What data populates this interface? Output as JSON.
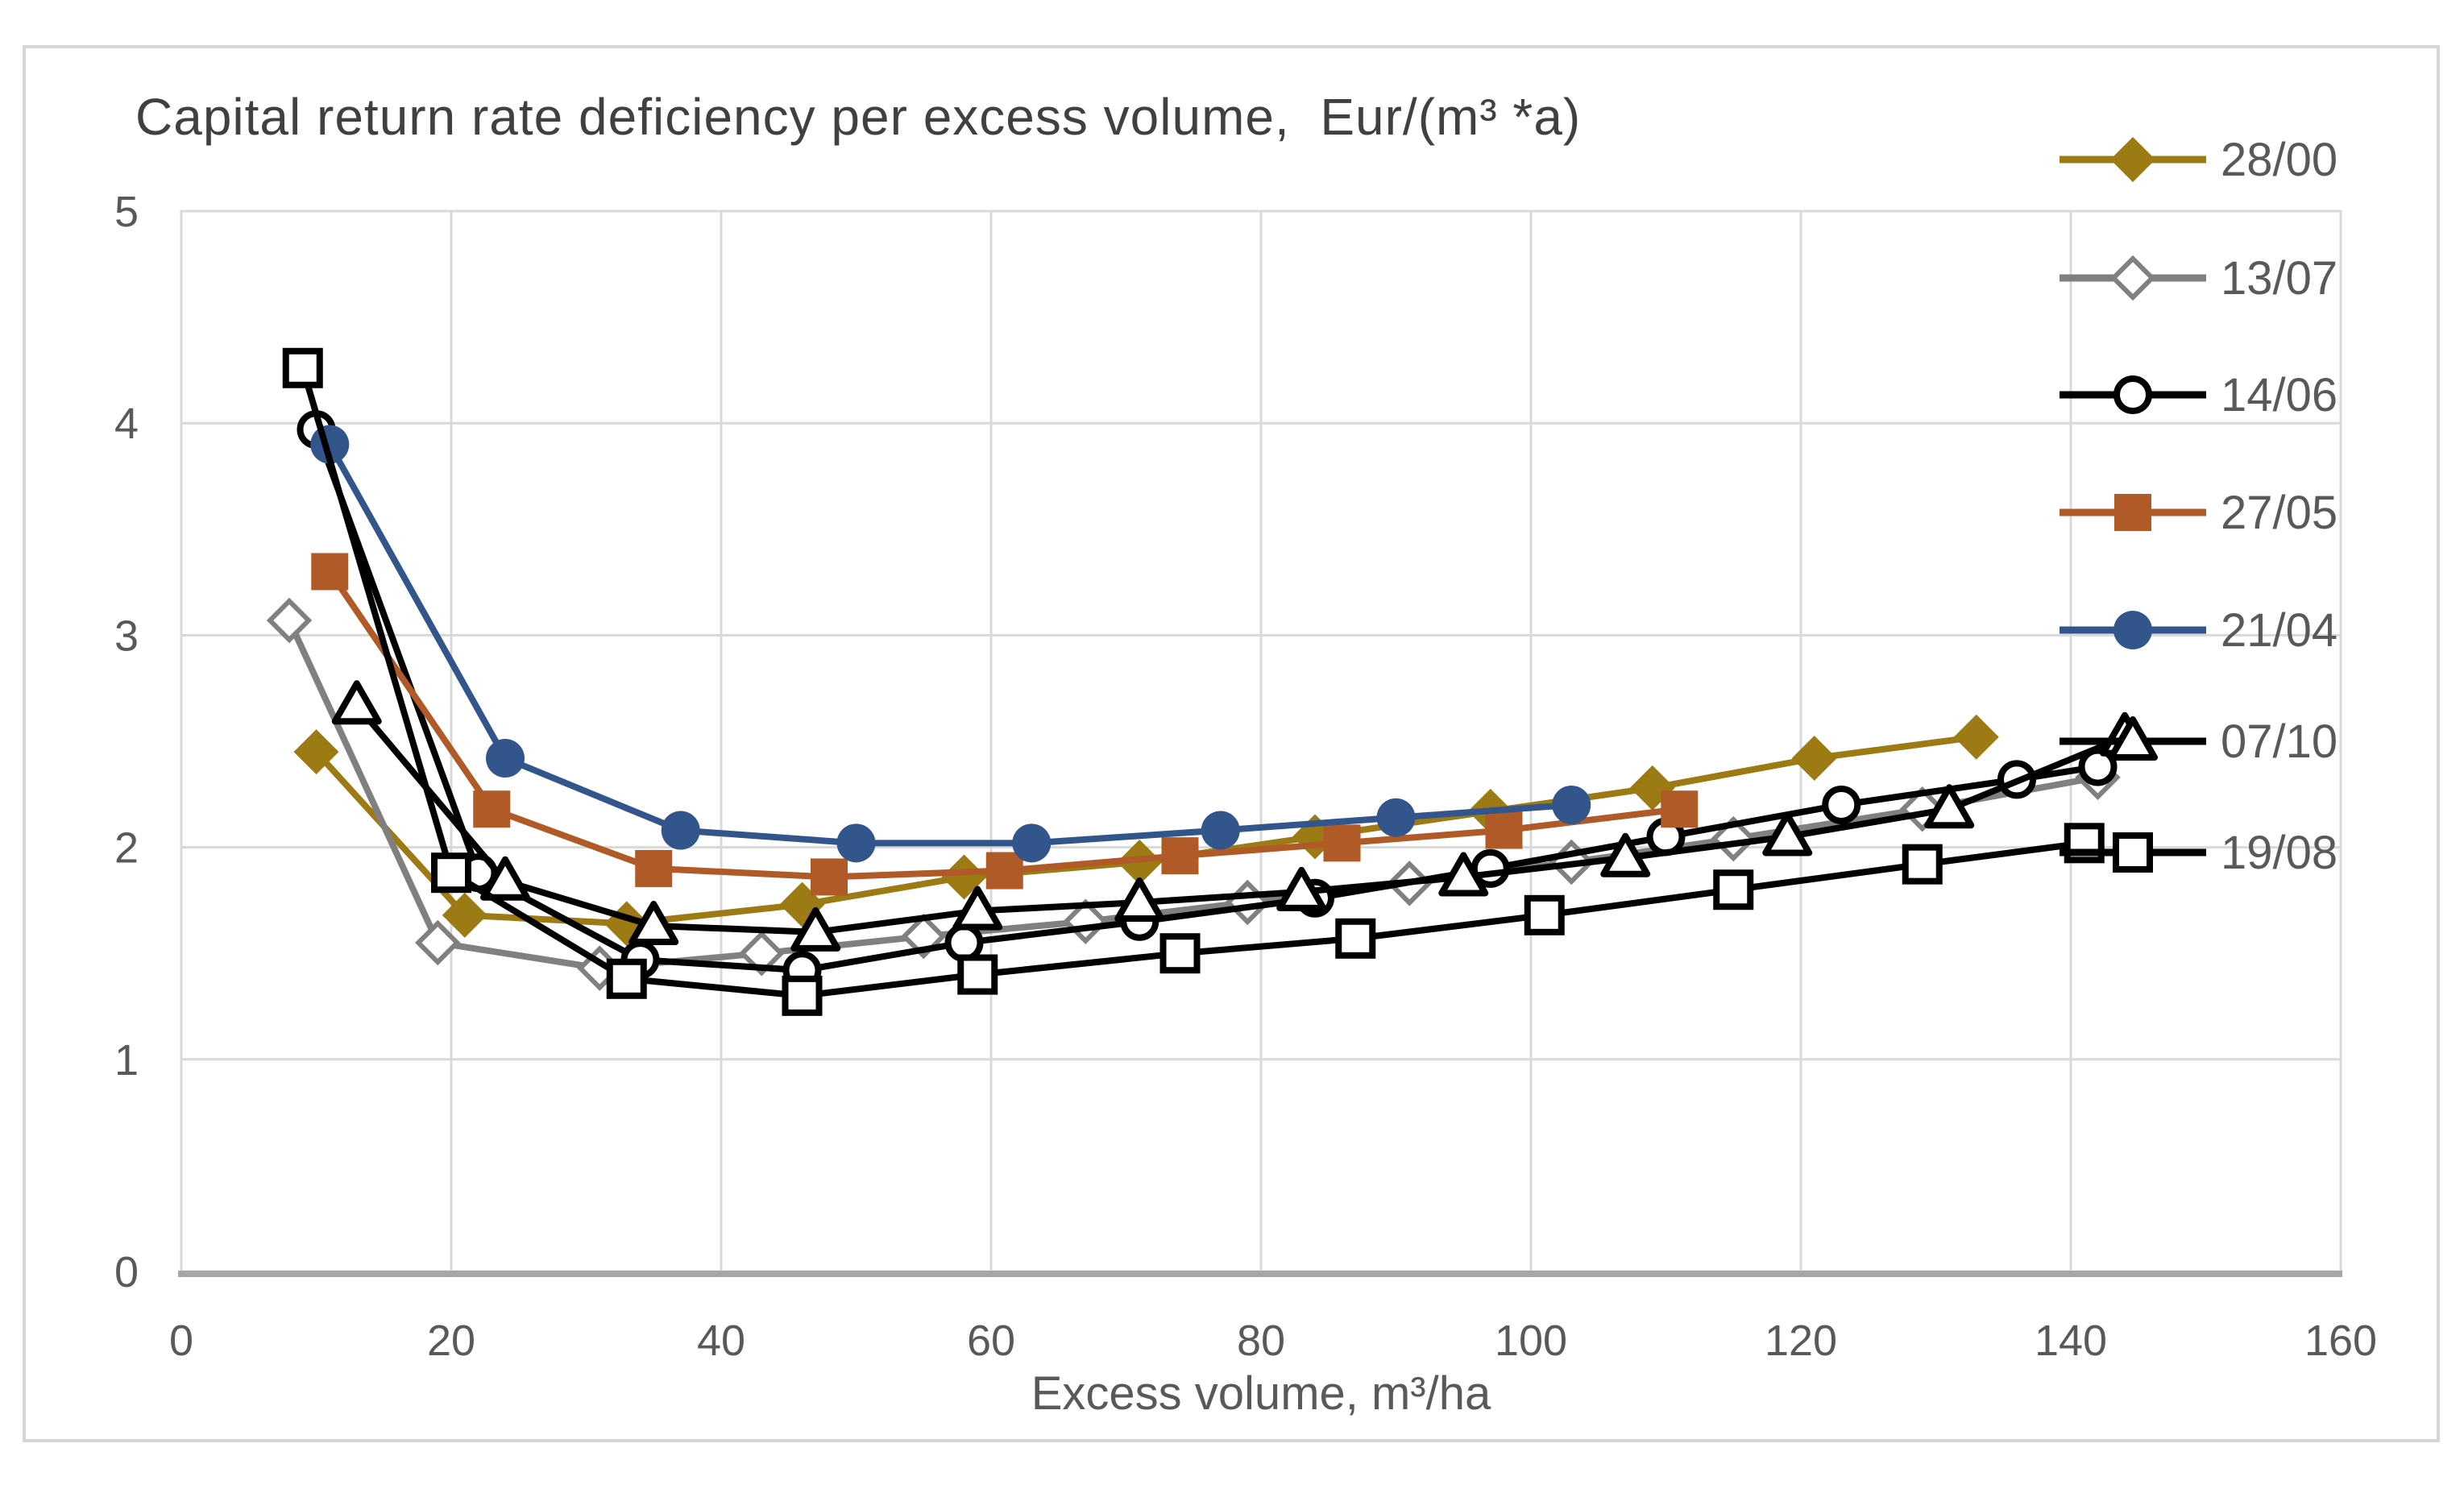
{
  "chart_data": {
    "type": "line",
    "title": "Capital return rate deficiency per excess volume,  Eur/(m³ *a)",
    "xlabel": "Excess volume, m³/ha",
    "ylabel": "",
    "xlim": [
      0,
      160
    ],
    "ylim": [
      0,
      5
    ],
    "xticks": [
      0,
      20,
      40,
      60,
      80,
      100,
      120,
      140,
      160
    ],
    "yticks": [
      0,
      1,
      2,
      3,
      4,
      5
    ],
    "grid": true,
    "legend_position": "right",
    "series": [
      {
        "name": "28/00",
        "color": "#9C7A14",
        "marker": "diamond-filled",
        "points": [
          [
            10,
            2.45
          ],
          [
            21,
            1.68
          ],
          [
            33,
            1.64
          ],
          [
            46,
            1.73
          ],
          [
            58,
            1.86
          ],
          [
            71,
            1.93
          ],
          [
            84,
            2.05
          ],
          [
            97,
            2.17
          ],
          [
            109,
            2.28
          ],
          [
            121,
            2.42
          ],
          [
            133,
            2.52
          ]
        ]
      },
      {
        "name": "13/07",
        "color": "#808080",
        "marker": "diamond-open",
        "points": [
          [
            8,
            3.07
          ],
          [
            19,
            1.55
          ],
          [
            31,
            1.43
          ],
          [
            43,
            1.5
          ],
          [
            55,
            1.58
          ],
          [
            67,
            1.65
          ],
          [
            79,
            1.74
          ],
          [
            91,
            1.83
          ],
          [
            103,
            1.93
          ],
          [
            115,
            2.04
          ],
          [
            129,
            2.18
          ],
          [
            142,
            2.33
          ]
        ]
      },
      {
        "name": "14/06",
        "color": "#000000",
        "marker": "circle-open",
        "points": [
          [
            10,
            3.97
          ],
          [
            22,
            1.88
          ],
          [
            34,
            1.47
          ],
          [
            46,
            1.42
          ],
          [
            58,
            1.55
          ],
          [
            71,
            1.65
          ],
          [
            84,
            1.76
          ],
          [
            97,
            1.9
          ],
          [
            110,
            2.05
          ],
          [
            123,
            2.2
          ],
          [
            136,
            2.32
          ],
          [
            142,
            2.38
          ]
        ]
      },
      {
        "name": "27/05",
        "color": "#B05A28",
        "marker": "square-filled",
        "points": [
          [
            11,
            3.3
          ],
          [
            23,
            2.18
          ],
          [
            35,
            1.9
          ],
          [
            48,
            1.86
          ],
          [
            61,
            1.89
          ],
          [
            74,
            1.96
          ],
          [
            86,
            2.02
          ],
          [
            98,
            2.08
          ],
          [
            111,
            2.18
          ]
        ]
      },
      {
        "name": "21/04",
        "color": "#32568C",
        "marker": "circle-filled",
        "points": [
          [
            11,
            3.9
          ],
          [
            24,
            2.42
          ],
          [
            37,
            2.08
          ],
          [
            50,
            2.02
          ],
          [
            63,
            2.02
          ],
          [
            77,
            2.08
          ],
          [
            90,
            2.14
          ],
          [
            103,
            2.2
          ]
        ]
      },
      {
        "name": "07/10",
        "color": "#000000",
        "marker": "triangle-open",
        "points": [
          [
            13,
            2.67
          ],
          [
            24,
            1.84
          ],
          [
            35,
            1.63
          ],
          [
            47,
            1.6
          ],
          [
            59,
            1.7
          ],
          [
            71,
            1.74
          ],
          [
            83,
            1.79
          ],
          [
            95,
            1.86
          ],
          [
            107,
            1.95
          ],
          [
            119,
            2.05
          ],
          [
            131,
            2.18
          ],
          [
            144,
            2.52
          ]
        ]
      },
      {
        "name": "19/08",
        "color": "#000000",
        "marker": "square-open",
        "points": [
          [
            9,
            4.26
          ],
          [
            20,
            1.88
          ],
          [
            33,
            1.38
          ],
          [
            46,
            1.3
          ],
          [
            59,
            1.4
          ],
          [
            74,
            1.5
          ],
          [
            87,
            1.57
          ],
          [
            101,
            1.68
          ],
          [
            115,
            1.8
          ],
          [
            129,
            1.92
          ],
          [
            141,
            2.02
          ]
        ]
      }
    ]
  },
  "colors": {
    "grid": "#D9D9D9",
    "axis_line": "#A6A6A6",
    "tick_text": "#595959",
    "title_text": "#404040",
    "frame": "#D6D6D6",
    "open_marker_fill": "#FFFFFF",
    "background": "#FFFFFF"
  }
}
